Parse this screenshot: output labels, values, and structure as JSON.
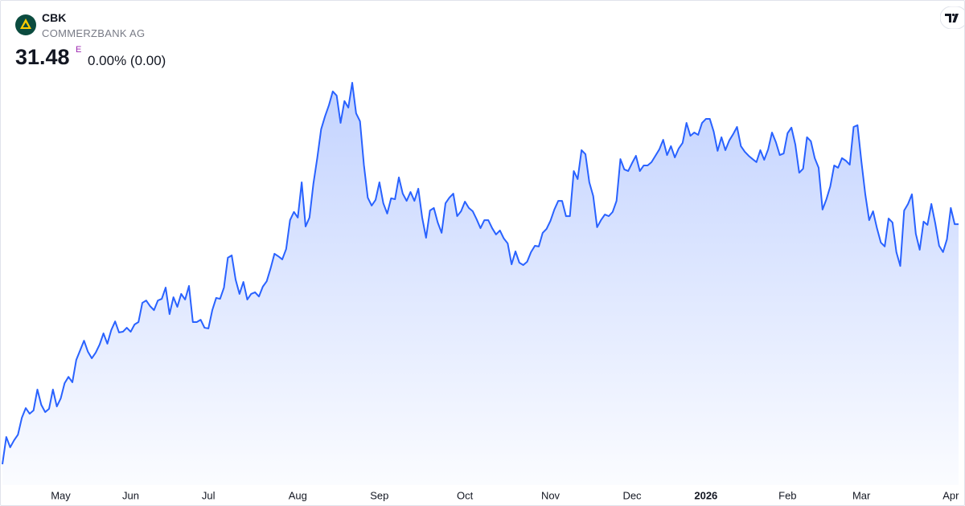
{
  "header": {
    "symbol": "CBK",
    "name": "COMMERZBANK AG",
    "price": "31.48",
    "flag": "E",
    "change": "0.00% (0.00)"
  },
  "chart_data": {
    "type": "area",
    "series": [
      {
        "name": "CBK",
        "color": "#2962ff",
        "values": [
          21.26,
          22.42,
          21.98,
          22.28,
          22.52,
          23.24,
          23.65,
          23.41,
          23.55,
          24.44,
          23.79,
          23.48,
          23.62,
          24.44,
          23.72,
          24.06,
          24.71,
          24.98,
          24.75,
          25.7,
          26.11,
          26.52,
          26.05,
          25.77,
          26.01,
          26.35,
          26.83,
          26.39,
          26.97,
          27.34,
          26.87,
          26.9,
          27.07,
          26.9,
          27.21,
          27.31,
          28.13,
          28.23,
          27.99,
          27.82,
          28.23,
          28.3,
          28.78,
          27.65,
          28.37,
          27.96,
          28.51,
          28.27,
          28.85,
          27.31,
          27.31,
          27.41,
          27.07,
          27.04,
          27.82,
          28.34,
          28.3,
          28.78,
          30.05,
          30.15,
          29.12,
          28.51,
          29.02,
          28.27,
          28.51,
          28.58,
          28.4,
          28.82,
          29.05,
          29.6,
          30.22,
          30.11,
          29.98,
          30.42,
          31.65,
          32.0,
          31.76,
          33.26,
          31.38,
          31.76,
          33.19,
          34.29,
          35.52,
          36.07,
          36.54,
          37.13,
          36.95,
          35.79,
          36.72,
          36.44,
          37.5,
          36.2,
          35.86,
          34.01,
          32.61,
          32.27,
          32.51,
          33.26,
          32.37,
          31.93,
          32.58,
          32.54,
          33.47,
          32.78,
          32.47,
          32.85,
          32.47,
          32.99,
          31.76,
          30.9,
          32.06,
          32.17,
          31.55,
          31.11,
          32.37,
          32.61,
          32.78,
          31.82,
          32.03,
          32.44,
          32.17,
          32.03,
          31.69,
          31.31,
          31.65,
          31.65,
          31.31,
          31.04,
          31.21,
          30.87,
          30.66,
          29.77,
          30.32,
          29.84,
          29.74,
          29.88,
          30.29,
          30.56,
          30.53,
          31.11,
          31.28,
          31.62,
          32.1,
          32.47,
          32.47,
          31.82,
          31.82,
          33.74,
          33.4,
          34.63,
          34.46,
          33.26,
          32.68,
          31.35,
          31.65,
          31.89,
          31.82,
          32.0,
          32.47,
          34.25,
          33.81,
          33.74,
          34.08,
          34.39,
          33.74,
          33.98,
          33.98,
          34.12,
          34.39,
          34.66,
          35.07,
          34.42,
          34.8,
          34.32,
          34.7,
          34.94,
          35.79,
          35.24,
          35.38,
          35.28,
          35.79,
          35.96,
          35.96,
          35.42,
          34.6,
          35.18,
          34.63,
          35.04,
          35.31,
          35.62,
          34.8,
          34.56,
          34.39,
          34.25,
          34.12,
          34.63,
          34.22,
          34.66,
          35.38,
          34.97,
          34.42,
          34.49,
          35.35,
          35.59,
          34.87,
          33.67,
          33.84,
          35.18,
          35.01,
          34.29,
          33.88,
          32.1,
          32.54,
          33.09,
          33.98,
          33.88,
          34.29,
          34.18,
          34.01,
          35.62,
          35.69,
          34.15,
          32.75,
          31.65,
          32.03,
          31.31,
          30.7,
          30.53,
          31.72,
          31.55,
          30.29,
          29.7,
          32.06,
          32.34,
          32.75,
          31.07,
          30.39,
          31.59,
          31.45,
          32.34,
          31.52,
          30.56,
          30.29,
          30.83,
          32.17,
          31.48,
          31.48
        ]
      }
    ],
    "xticks": [
      {
        "value": 15,
        "label": "May"
      },
      {
        "value": 33,
        "label": "Jun"
      },
      {
        "value": 53,
        "label": "Jul"
      },
      {
        "value": 76,
        "label": "Aug"
      },
      {
        "value": 97,
        "label": "Sep"
      },
      {
        "value": 119,
        "label": "Oct"
      },
      {
        "value": 141,
        "label": "Nov"
      },
      {
        "value": 162,
        "label": "Dec"
      },
      {
        "value": 181,
        "label": "2026"
      },
      {
        "value": 202,
        "label": "Feb"
      },
      {
        "value": 221,
        "label": "Mar"
      },
      {
        "value": 244,
        "label": "Apr"
      }
    ]
  }
}
